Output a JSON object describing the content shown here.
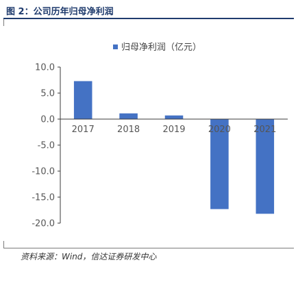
{
  "figure": {
    "title": "图 2：公司历年归母净利润",
    "source": "资料来源：Wind，信达证券研发中心"
  },
  "colors": {
    "bar": "#4472c4",
    "title": "#1f3b6d",
    "axis": "#3a3a3a"
  },
  "chart_data": {
    "type": "bar",
    "categories": [
      "2017",
      "2018",
      "2019",
      "2020",
      "2021"
    ],
    "series": [
      {
        "name": "归母净利润（亿元）",
        "values": [
          7.3,
          1.1,
          0.7,
          -17.3,
          -18.2
        ]
      }
    ],
    "ylim": [
      -20,
      10
    ],
    "yticks": [
      "10.0",
      "5.0",
      "0.0",
      "-5.0",
      "-10.0",
      "-15.0",
      "-20.0"
    ],
    "ytick_values": [
      10,
      5,
      0,
      -5,
      -10,
      -15,
      -20
    ],
    "legend_position": "top-right",
    "grid": false,
    "xlabel": "",
    "ylabel": ""
  }
}
